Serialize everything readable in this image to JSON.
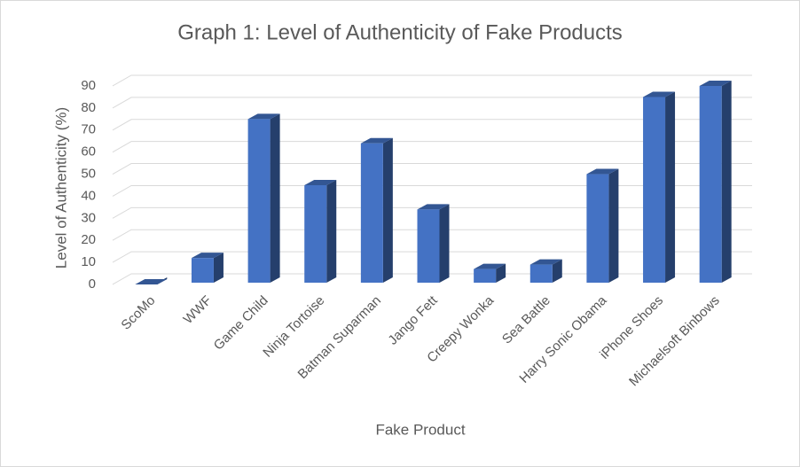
{
  "chart_data": {
    "type": "bar3d",
    "title": "Graph 1: Level of Authenticity of Fake Products",
    "x_label": "Fake Product",
    "y_label": "Level of Authenticity (%)",
    "categories": [
      "ScoMo",
      "WWF",
      "Game Child",
      "Ninja Tortoise",
      "Batman Suparman",
      "Jango Fett",
      "Creepy Wonka",
      "Sea Battle",
      "Harry Sonic Obama",
      "iPhone Shoes",
      "Michaelsoft Binbows"
    ],
    "values": [
      0,
      12,
      75,
      45,
      64,
      34,
      7,
      9,
      50,
      85,
      90
    ],
    "color": "#4472c4",
    "ylim": [
      0,
      90
    ],
    "yticks": [
      0,
      10,
      20,
      30,
      40,
      50,
      60,
      70,
      80,
      90
    ],
    "grid": true
  }
}
